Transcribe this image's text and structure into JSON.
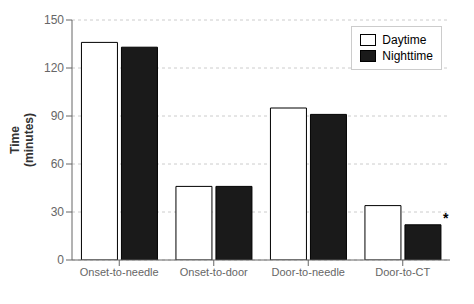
{
  "chart_data": {
    "type": "bar",
    "ylabel": "Time\n(minutes)",
    "categories": [
      "Onset-to-needle",
      "Onset-to-door",
      "Door-to-needle",
      "Door-to-CT"
    ],
    "series": [
      {
        "name": "Daytime",
        "color": "#ffffff",
        "values": [
          136,
          46,
          95,
          34
        ]
      },
      {
        "name": "Nighttime",
        "color": "#1a1a1a",
        "values": [
          133,
          46,
          91,
          22
        ]
      }
    ],
    "ylim": [
      0,
      150
    ],
    "yticks": [
      0,
      30,
      60,
      90,
      120,
      150
    ],
    "grid": true,
    "legend": "upper right",
    "annotations": [
      {
        "text": "*",
        "category": "Door-to-CT",
        "series": "Nighttime"
      }
    ]
  }
}
